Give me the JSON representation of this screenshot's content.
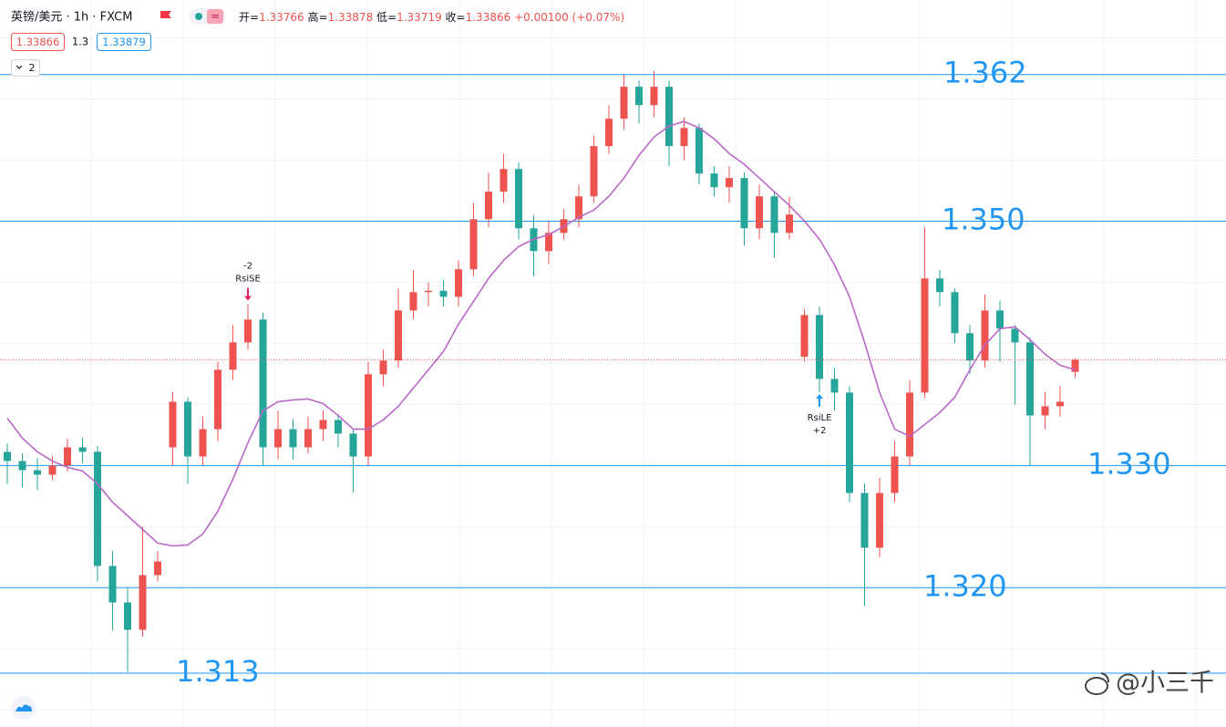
{
  "toolbar": {
    "symbol": "英镑/美元 · 1h · FXCM",
    "ohlc_labels": [
      "开=",
      "高=",
      "低=",
      "收="
    ],
    "change": "+0.00100 (+0.07%)",
    "spread": 1.3,
    "ask": 1.33879,
    "indicator_count": 2,
    "watermark": "@小三千"
  },
  "chart_data": {
    "type": "candlestick",
    "up_color": "#ef5350",
    "down_color": "#26a69a",
    "ylim": [
      1.3086,
      1.3681
    ],
    "yticks": [
      1.31,
      1.315,
      1.32,
      1.325,
      1.33,
      1.335,
      1.34,
      1.345,
      1.35,
      1.355,
      1.36,
      1.365
    ],
    "grid": true,
    "open": [
      1.33112,
      1.33037,
      1.32962,
      1.32925,
      1.33,
      1.33149,
      1.33112,
      1.32178,
      1.31879,
      1.31655,
      1.32103,
      1.33149,
      1.33522,
      1.33074,
      1.33298,
      1.33784,
      1.34008,
      1.34195,
      1.33149,
      1.33298,
      1.33149,
      1.33298,
      1.33373,
      1.33261,
      1.33074,
      1.33747,
      1.33859,
      1.34269,
      1.34419,
      1.3443,
      1.34381,
      1.34606,
      1.35016,
      1.35241,
      1.35427,
      1.34942,
      1.34755,
      1.34904,
      1.35016,
      1.35203,
      1.35614,
      1.35838,
      1.361,
      1.3595,
      1.361,
      1.35614,
      1.35763,
      1.3539,
      1.35278,
      1.35353,
      1.34942,
      1.35203,
      1.34904,
      1.3389,
      1.34232,
      1.33709,
      1.33597,
      1.32775,
      1.32327,
      1.32775,
      1.33074,
      1.33597,
      1.34531,
      1.34419,
      1.34083,
      1.33859,
      1.34269,
      1.3412,
      1.34008,
      1.3341,
      1.33485,
      1.33766
    ],
    "high": [
      1.3318,
      1.331,
      1.3306,
      1.3308,
      1.3322,
      1.3323,
      1.3316,
      1.323,
      1.32,
      1.325,
      1.323,
      1.336,
      1.3356,
      1.334,
      1.3385,
      1.3415,
      1.3432,
      1.3425,
      1.3345,
      1.3338,
      1.334,
      1.3345,
      1.3342,
      1.333,
      1.3385,
      1.3395,
      1.3445,
      1.346,
      1.345,
      1.3452,
      1.3468,
      1.3515,
      1.354,
      1.3555,
      1.3548,
      1.3505,
      1.35,
      1.351,
      1.353,
      1.357,
      1.3595,
      1.362,
      1.3615,
      1.3623,
      1.3615,
      1.3585,
      1.358,
      1.3545,
      1.3545,
      1.354,
      1.353,
      1.3525,
      1.352,
      1.3428,
      1.343,
      1.338,
      1.3365,
      1.3285,
      1.329,
      1.332,
      1.337,
      1.3495,
      1.346,
      1.3445,
      1.3415,
      1.344,
      1.3435,
      1.3415,
      1.3405,
      1.336,
      1.3365,
      1.33878
    ],
    "low": [
      1.3285,
      1.3282,
      1.328,
      1.3288,
      1.3295,
      1.3302,
      1.3205,
      1.3165,
      1.3131,
      1.316,
      1.3205,
      1.33,
      1.3285,
      1.33,
      1.332,
      1.337,
      1.3395,
      1.33,
      1.3305,
      1.3305,
      1.331,
      1.332,
      1.3315,
      1.3278,
      1.33,
      1.3365,
      1.338,
      1.342,
      1.343,
      1.343,
      1.343,
      1.3455,
      1.3495,
      1.3515,
      1.3485,
      1.3455,
      1.3465,
      1.3485,
      1.3495,
      1.3515,
      1.3555,
      1.3575,
      1.358,
      1.3585,
      1.3545,
      1.355,
      1.353,
      1.352,
      1.3515,
      1.348,
      1.3485,
      1.347,
      1.3485,
      1.3385,
      1.336,
      1.3345,
      1.327,
      1.3185,
      1.3225,
      1.327,
      1.33,
      1.3355,
      1.343,
      1.34,
      1.3375,
      1.338,
      1.3385,
      1.335,
      1.33,
      1.333,
      1.334,
      1.33719
    ],
    "close": [
      1.33037,
      1.32962,
      1.32925,
      1.33,
      1.33149,
      1.33112,
      1.32178,
      1.31879,
      1.31655,
      1.32103,
      1.32215,
      1.33522,
      1.33074,
      1.33298,
      1.33784,
      1.34008,
      1.34195,
      1.33149,
      1.33298,
      1.33149,
      1.33298,
      1.33373,
      1.33261,
      1.33074,
      1.33747,
      1.33859,
      1.34269,
      1.34419,
      1.3443,
      1.34381,
      1.34606,
      1.35016,
      1.35241,
      1.35427,
      1.34942,
      1.34755,
      1.34904,
      1.35016,
      1.35203,
      1.35614,
      1.35838,
      1.361,
      1.3595,
      1.361,
      1.35614,
      1.35763,
      1.3539,
      1.35278,
      1.35353,
      1.34942,
      1.35203,
      1.34904,
      1.35054,
      1.34232,
      1.33709,
      1.33597,
      1.32775,
      1.32327,
      1.32775,
      1.33074,
      1.33597,
      1.34531,
      1.34419,
      1.34083,
      1.33859,
      1.34269,
      1.3412,
      1.34008,
      1.3341,
      1.33485,
      1.33522,
      1.33866
    ],
    "ma": {
      "color": "#ba68c8",
      "values": [
        1.33388,
        1.33224,
        1.33112,
        1.33037,
        1.32985,
        1.32955,
        1.3285,
        1.327,
        1.32589,
        1.32477,
        1.32365,
        1.32342,
        1.3235,
        1.32439,
        1.32626,
        1.32888,
        1.33186,
        1.33448,
        1.33522,
        1.33537,
        1.33545,
        1.33507,
        1.3341,
        1.33298,
        1.33298,
        1.33373,
        1.33485,
        1.33634,
        1.33784,
        1.33933,
        1.34157,
        1.34344,
        1.34531,
        1.3468,
        1.34792,
        1.34852,
        1.34889,
        1.34957,
        1.35031,
        1.35091,
        1.35203,
        1.35353,
        1.35539,
        1.35689,
        1.35778,
        1.35816,
        1.35763,
        1.35674,
        1.35554,
        1.35465,
        1.35353,
        1.35241,
        1.35128,
        1.35002,
        1.34852,
        1.34643,
        1.34381,
        1.34008,
        1.33597,
        1.33298,
        1.33239,
        1.33336,
        1.33433,
        1.3356,
        1.33784,
        1.33986,
        1.3412,
        1.34135,
        1.3403,
        1.33911,
        1.33821,
        1.33784
      ]
    },
    "levels": [
      {
        "value": 1.362,
        "label": "1.362"
      },
      {
        "value": 1.35,
        "label": "1.350"
      },
      {
        "value": 1.33,
        "label": "1.330"
      },
      {
        "value": 1.32,
        "label": "1.320"
      },
      {
        "value": 1.313,
        "label": "1.313"
      }
    ],
    "level_color": "#2196f3",
    "signals": [
      {
        "name": "RsiSE",
        "qty": "-2"
      },
      {
        "name": "RsiLE",
        "qty": "+2"
      }
    ]
  }
}
